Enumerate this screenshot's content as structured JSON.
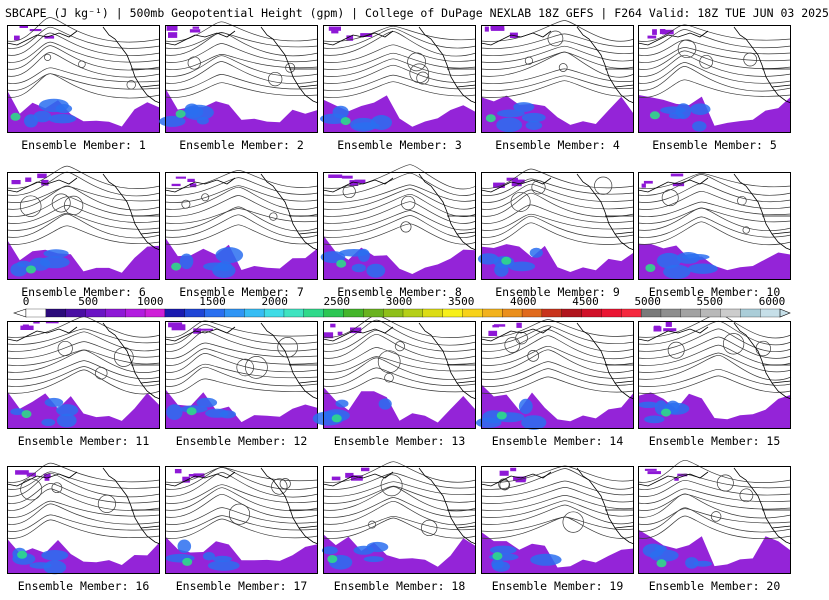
{
  "title": "SBCAPE (J kg⁻¹) | 500mb Geopotential Height (gpm) | College of DuPage NEXLAB 18Z GEFS | F264 Valid: 18Z TUE JUN 03 2025",
  "members": [
    "Ensemble Member: 1",
    "Ensemble Member: 2",
    "Ensemble Member: 3",
    "Ensemble Member: 4",
    "Ensemble Member: 5",
    "Ensemble Member: 6",
    "Ensemble Member: 7",
    "Ensemble Member: 8",
    "Ensemble Member: 9",
    "Ensemble Member: 10",
    "Ensemble Member: 11",
    "Ensemble Member: 12",
    "Ensemble Member: 13",
    "Ensemble Member: 14",
    "Ensemble Member: 15",
    "Ensemble Member: 16",
    "Ensemble Member: 17",
    "Ensemble Member: 18",
    "Ensemble Member: 19",
    "Ensemble Member: 20"
  ],
  "colorbar": {
    "tick_labels": [
      "0",
      "500",
      "1000",
      "1500",
      "2000",
      "2500",
      "3000",
      "3500",
      "4000",
      "4500",
      "5000",
      "5500",
      "6000"
    ],
    "range": [
      0,
      6000
    ],
    "colors": [
      "#ffffff",
      "#2b0a7a",
      "#4a0fa3",
      "#6a14c4",
      "#8e18d6",
      "#b21cdf",
      "#cf1fd8",
      "#1a1ab0",
      "#1f45d6",
      "#2a6ff0",
      "#2f95f5",
      "#36bdf4",
      "#3fdce6",
      "#3fe3c0",
      "#2fd98a",
      "#2cc653",
      "#45b52a",
      "#6ab21f",
      "#8fbf1a",
      "#b5cf18",
      "#dcdc14",
      "#f7f01a",
      "#f7d21a",
      "#f2b21c",
      "#ea8f1c",
      "#e06a1c",
      "#c8341c",
      "#b0141c",
      "#d01028",
      "#ea1432",
      "#f5283e",
      "#7a7a7a",
      "#8e8e8e",
      "#a2a2a2",
      "#b8b8b8",
      "#cccccc",
      "#aacdd8",
      "#c6dfe8"
    ]
  },
  "style": {
    "contour_color": "#3a3a3a",
    "coast_color": "#000000",
    "cape_low": "#8e18d6",
    "cape_mid": "#2a6ff0",
    "cape_high": "#2fd98a"
  }
}
